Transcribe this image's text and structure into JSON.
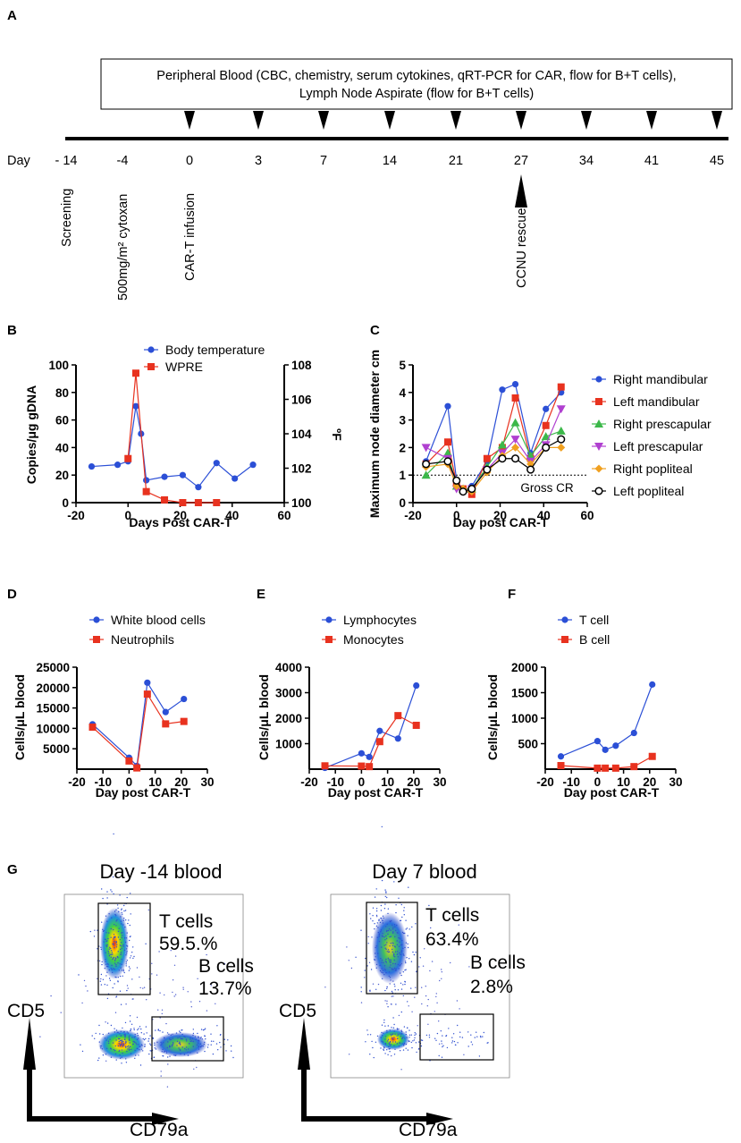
{
  "colors": {
    "blue": "#2b4fd6",
    "red": "#e8321f",
    "green": "#3cb84a",
    "purple": "#b040d0",
    "orange": "#f0a020",
    "black": "#000000"
  },
  "panelA": {
    "letter": "A",
    "box_line1": "Peripheral Blood (CBC, chemistry, serum cytokines, qRT-PCR for CAR, flow for B+T cells),",
    "box_line2": "Lymph Node Aspirate (flow for B+T cells)",
    "day_label": "Day",
    "days": [
      "- 14",
      "-4",
      "0",
      "3",
      "7",
      "14",
      "21",
      "27",
      "34",
      "41",
      "45"
    ],
    "events": [
      "Screening",
      "500mg/m² cytoxan",
      "CAR-T infusion",
      "CCNU rescue"
    ]
  },
  "chart_data": [
    {
      "id": "B",
      "type": "line",
      "letter": "B",
      "xlabel": "Days Post CAR-T",
      "ylabel": "Copies/μg gDNA",
      "y2label": "ºF",
      "xlim": [
        -20,
        60
      ],
      "ylim": [
        0,
        100
      ],
      "y2lim": [
        100,
        108
      ],
      "xticks": [
        "-20",
        "0",
        "20",
        "40",
        "60"
      ],
      "yticks": [
        "0",
        "20",
        "40",
        "60",
        "80",
        "100"
      ],
      "y2ticks": [
        "100",
        "102",
        "104",
        "106",
        "108"
      ],
      "series": [
        {
          "name": "Body temperature",
          "axis": "right",
          "color": "blue",
          "marker": "circle",
          "x": [
            -14,
            -4,
            0,
            3,
            5,
            7,
            14,
            21,
            27,
            34,
            41,
            48
          ],
          "y": [
            102.1,
            102.2,
            102.4,
            105.6,
            104,
            101.3,
            101.5,
            101.6,
            100.9,
            102.3,
            101.4,
            102.2
          ]
        },
        {
          "name": "WPRE",
          "axis": "left",
          "color": "red",
          "marker": "square",
          "x": [
            0,
            3,
            7,
            14,
            21,
            27,
            34
          ],
          "y": [
            32,
            94,
            8,
            2,
            0,
            0,
            0
          ]
        }
      ]
    },
    {
      "id": "C",
      "type": "line",
      "letter": "C",
      "xlabel": "Day post CAR-T",
      "ylabel": "Maximum node diameter cm",
      "xlim": [
        -20,
        60
      ],
      "ylim": [
        0,
        5
      ],
      "xticks": [
        "-20",
        "0",
        "20",
        "40",
        "60"
      ],
      "yticks": [
        "0",
        "1",
        "2",
        "3",
        "4",
        "5"
      ],
      "reference": {
        "y": 1,
        "label": "Gross CR"
      },
      "x": [
        -14,
        -4,
        0,
        3,
        7,
        14,
        21,
        27,
        34,
        41,
        48
      ],
      "series": [
        {
          "name": "Right mandibular",
          "color": "blue",
          "marker": "circle",
          "y": [
            1.5,
            3.5,
            0.8,
            0.4,
            0.6,
            1.5,
            4.1,
            4.3,
            1.8,
            3.4,
            4.0
          ]
        },
        {
          "name": "Left mandibular",
          "color": "red",
          "marker": "square",
          "y": [
            1.4,
            2.2,
            0.7,
            0.5,
            0.3,
            1.6,
            2.0,
            3.8,
            1.6,
            2.8,
            4.2
          ]
        },
        {
          "name": "Right prescapular",
          "color": "green",
          "marker": "triangle-up",
          "y": [
            1.0,
            1.8,
            0.6,
            0.5,
            0.5,
            1.3,
            2.1,
            2.9,
            1.7,
            2.4,
            2.6
          ]
        },
        {
          "name": "Left prescapular",
          "color": "purple",
          "marker": "triangle-down",
          "y": [
            2.0,
            1.6,
            0.5,
            0.4,
            0.5,
            1.2,
            1.8,
            2.3,
            1.5,
            2.1,
            3.4
          ]
        },
        {
          "name": "Right popliteal",
          "color": "orange",
          "marker": "diamond",
          "y": [
            1.3,
            1.4,
            0.6,
            0.5,
            0.4,
            1.1,
            1.7,
            2.0,
            1.4,
            2.0,
            2.0
          ]
        },
        {
          "name": "Left popliteal",
          "color": "black",
          "marker": "open-circle",
          "y": [
            1.4,
            1.5,
            0.8,
            0.4,
            0.5,
            1.2,
            1.6,
            1.6,
            1.2,
            2.0,
            2.3
          ]
        }
      ]
    },
    {
      "id": "D",
      "type": "line",
      "letter": "D",
      "xlabel": "Day post CAR-T",
      "ylabel": "Cells/μL blood",
      "xlim": [
        -20,
        30
      ],
      "ylim": [
        0,
        25000
      ],
      "xticks": [
        "-20",
        "-10",
        "0",
        "10",
        "20",
        "30"
      ],
      "yticks": [
        "5000",
        "10000",
        "15000",
        "20000",
        "25000"
      ],
      "x": [
        -14,
        0,
        3,
        7,
        14,
        21
      ],
      "series": [
        {
          "name": "White blood cells",
          "color": "blue",
          "marker": "circle",
          "y": [
            11000,
            2800,
            800,
            21200,
            14000,
            17200
          ]
        },
        {
          "name": "Neutrophils",
          "color": "red",
          "marker": "square",
          "y": [
            10300,
            2000,
            300,
            18400,
            11100,
            11700
          ]
        }
      ]
    },
    {
      "id": "E",
      "type": "line",
      "letter": "E",
      "xlabel": "Day post CAR-T",
      "ylabel": "Cells/μL blood",
      "xlim": [
        -20,
        30
      ],
      "ylim": [
        0,
        4000
      ],
      "xticks": [
        "-20",
        "-10",
        "0",
        "10",
        "20",
        "30"
      ],
      "yticks": [
        "1000",
        "2000",
        "3000",
        "4000"
      ],
      "x": [
        -14,
        0,
        3,
        7,
        14,
        21
      ],
      "series": [
        {
          "name": "Lymphocytes",
          "color": "blue",
          "marker": "circle",
          "y": [
            50,
            620,
            480,
            1500,
            1200,
            3280
          ]
        },
        {
          "name": "Monocytes",
          "color": "red",
          "marker": "square",
          "y": [
            130,
            120,
            100,
            1080,
            2100,
            1720
          ]
        }
      ]
    },
    {
      "id": "F",
      "type": "line",
      "letter": "F",
      "xlabel": "Day post CAR-T",
      "ylabel": "Cells/μL blood",
      "xlim": [
        -20,
        30
      ],
      "ylim": [
        0,
        2000
      ],
      "xticks": [
        "-20",
        "-10",
        "0",
        "10",
        "20",
        "30"
      ],
      "yticks": [
        "500",
        "1000",
        "1500",
        "2000"
      ],
      "x": [
        -14,
        0,
        3,
        7,
        14,
        21
      ],
      "series": [
        {
          "name": "T cell",
          "color": "blue",
          "marker": "circle",
          "y": [
            250,
            550,
            380,
            460,
            710,
            1660
          ]
        },
        {
          "name": "B cell",
          "color": "red",
          "marker": "square",
          "y": [
            70,
            20,
            20,
            20,
            50,
            250
          ]
        }
      ]
    }
  ],
  "panelG": {
    "letter": "G",
    "left_title": "Day -14 blood",
    "right_title": "Day 7 blood",
    "y_axis": "CD5",
    "x_axis": "CD79a",
    "left_t_label": "T cells",
    "left_t_value": "59.5.%",
    "left_b_label": "B cells",
    "left_b_value": "13.7%",
    "right_t_label": "T cells",
    "right_t_value": "63.4%",
    "right_b_label": "B cells",
    "right_b_value": "2.8%"
  }
}
